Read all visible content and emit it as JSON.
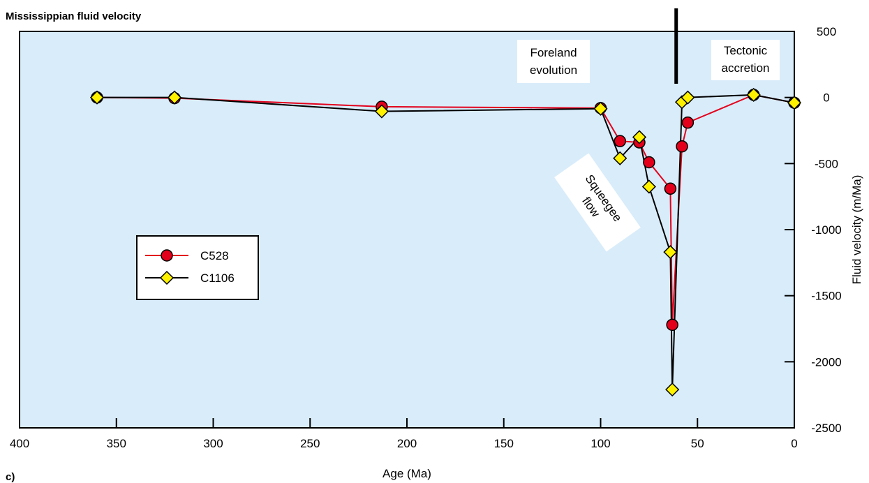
{
  "title": "Mississippian fluid velocity",
  "panel_label": "c)",
  "chart_data": {
    "type": "line",
    "xlabel": "Age (Ma)",
    "ylabel": "Fluid velocity (m/Ma)",
    "xlim": [
      400,
      0
    ],
    "ylim": [
      -2500,
      500
    ],
    "x_ticks": [
      400,
      350,
      300,
      250,
      200,
      150,
      100,
      50,
      0
    ],
    "y_ticks": [
      500,
      0,
      -500,
      -1000,
      -1500,
      -2000,
      -2500
    ],
    "grid": false,
    "legend_placement": "center-left",
    "plot_background": "#d9ecfa",
    "series": [
      {
        "name": "C528",
        "color": "#e3001b",
        "marker": "circle",
        "x": [
          360,
          320,
          213,
          100,
          90,
          80,
          75,
          64,
          63,
          58,
          55,
          21,
          0
        ],
        "y": [
          0,
          -5,
          -70,
          -80,
          -330,
          -340,
          -490,
          -690,
          -1720,
          -370,
          -190,
          20,
          -40
        ]
      },
      {
        "name": "C1106",
        "color": "#000000",
        "marker": "diamond",
        "x": [
          360,
          320,
          213,
          100,
          90,
          80,
          75,
          64,
          63,
          58,
          55,
          21,
          0
        ],
        "y": [
          0,
          0,
          -105,
          -85,
          -460,
          -300,
          -675,
          -1170,
          -2210,
          -35,
          0,
          20,
          -40
        ]
      }
    ],
    "annotations": {
      "foreland": [
        "Foreland",
        "evolution"
      ],
      "tectonic": [
        "Tectonic",
        "accretion"
      ],
      "squeegee": [
        "Squeegee",
        "flow"
      ]
    },
    "divider_age": 61
  }
}
